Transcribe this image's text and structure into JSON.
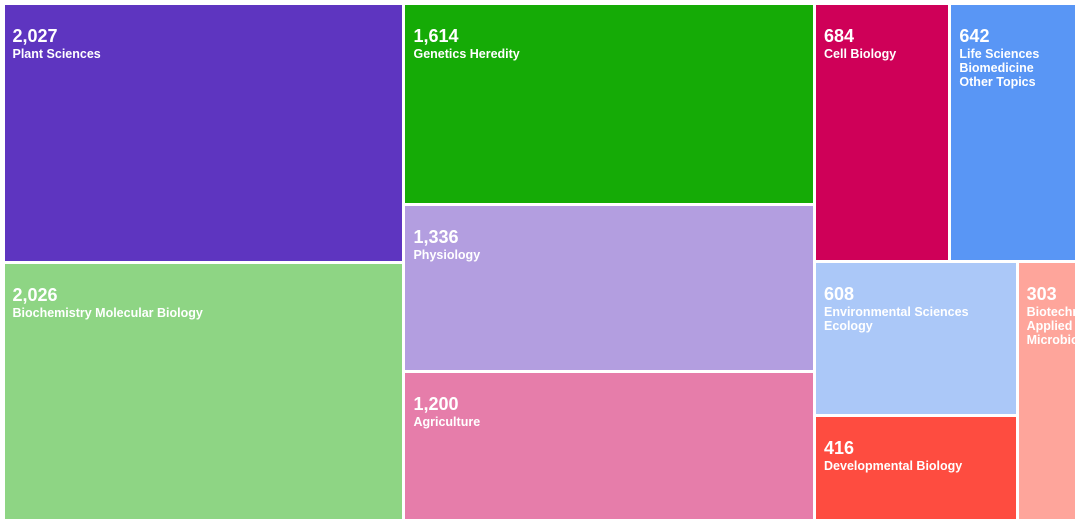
{
  "chart_data": {
    "type": "treemap",
    "title": "",
    "items": [
      {
        "label": "Plant Sciences",
        "value": 2027,
        "display_value": "2,027",
        "color": "#5e35c0"
      },
      {
        "label": "Biochemistry Molecular Biology",
        "value": 2026,
        "display_value": "2,026",
        "color": "#8ed584"
      },
      {
        "label": "Genetics Heredity",
        "value": 1614,
        "display_value": "1,614",
        "color": "#15ab06"
      },
      {
        "label": "Physiology",
        "value": 1336,
        "display_value": "1,336",
        "color": "#b39ee0"
      },
      {
        "label": "Agriculture",
        "value": 1200,
        "display_value": "1,200",
        "color": "#e67daa"
      },
      {
        "label": "Cell Biology",
        "value": 684,
        "display_value": "684",
        "color": "#cf0058"
      },
      {
        "label": "Life Sciences Biomedicine Other Topics",
        "value": 642,
        "display_value": "642",
        "color": "#5996f5"
      },
      {
        "label": "Environmental Sciences Ecology",
        "value": 608,
        "display_value": "608",
        "color": "#abc8f8"
      },
      {
        "label": "Developmental Biology",
        "value": 416,
        "display_value": "416",
        "color": "#fe4c40"
      },
      {
        "label": "Biotechnology Applied Microbiology",
        "value": 303,
        "display_value": "303",
        "color": "#fea59b"
      }
    ]
  }
}
